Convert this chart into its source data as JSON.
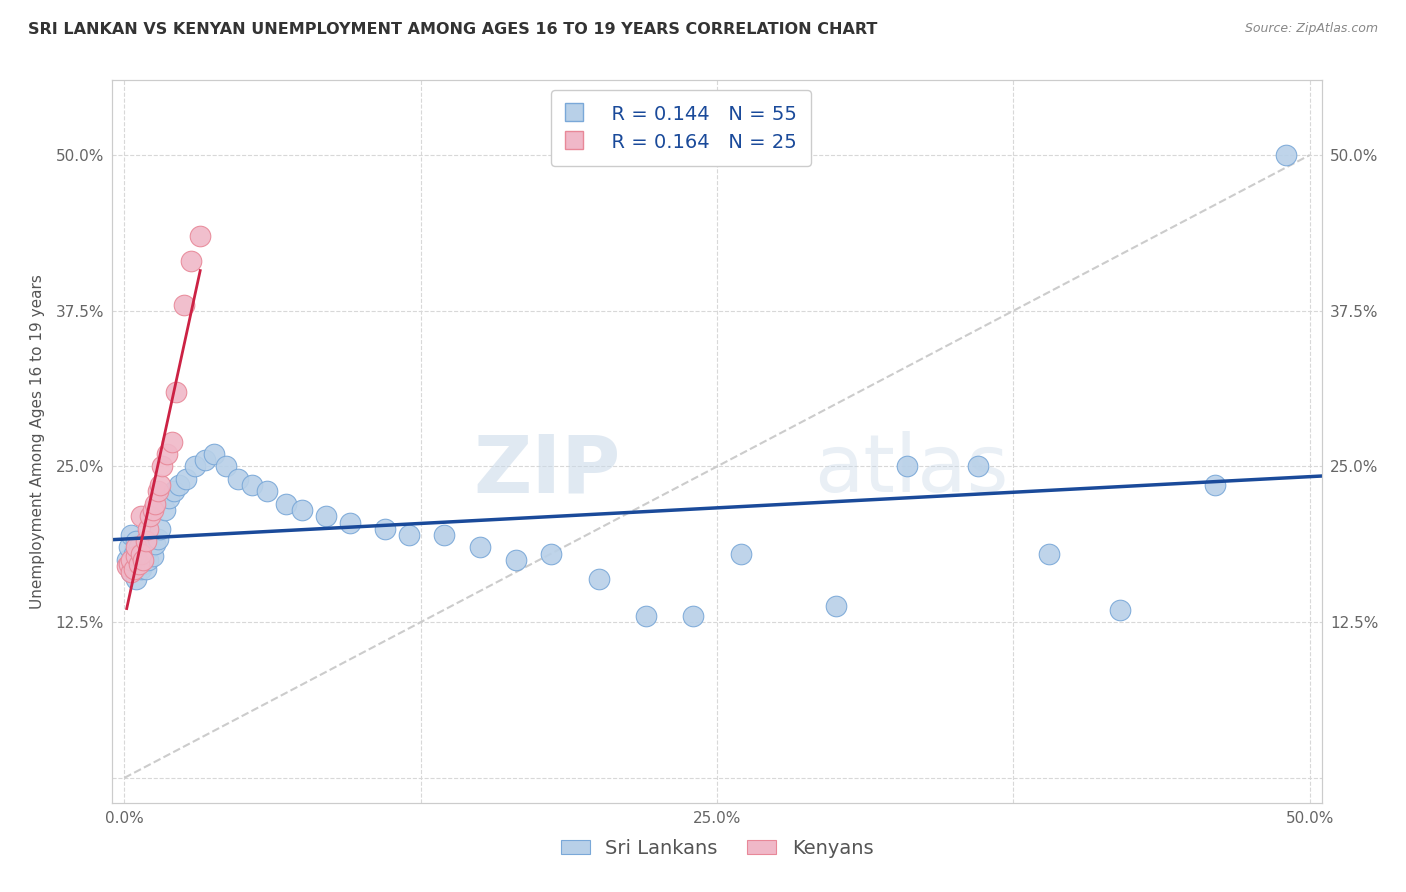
{
  "title": "SRI LANKAN VS KENYAN UNEMPLOYMENT AMONG AGES 16 TO 19 YEARS CORRELATION CHART",
  "source": "Source: ZipAtlas.com",
  "ylabel": "Unemployment Among Ages 16 to 19 years",
  "xlim": [
    -0.005,
    0.505
  ],
  "ylim": [
    -0.02,
    0.56
  ],
  "xticks": [
    0.0,
    0.125,
    0.25,
    0.375,
    0.5
  ],
  "xticklabels": [
    "0.0%",
    "",
    "25.0%",
    "",
    "50.0%"
  ],
  "yticks": [
    0.0,
    0.125,
    0.25,
    0.375,
    0.5
  ],
  "yticklabels": [
    "",
    "12.5%",
    "25.0%",
    "37.5%",
    "50.0%"
  ],
  "sri_lankan_x": [
    0.001,
    0.002,
    0.003,
    0.003,
    0.004,
    0.004,
    0.005,
    0.005,
    0.006,
    0.006,
    0.007,
    0.007,
    0.008,
    0.008,
    0.009,
    0.01,
    0.01,
    0.011,
    0.012,
    0.013,
    0.014,
    0.015,
    0.017,
    0.019,
    0.021,
    0.023,
    0.026,
    0.03,
    0.034,
    0.038,
    0.043,
    0.048,
    0.054,
    0.06,
    0.068,
    0.075,
    0.085,
    0.095,
    0.11,
    0.12,
    0.135,
    0.15,
    0.165,
    0.18,
    0.2,
    0.22,
    0.24,
    0.26,
    0.3,
    0.33,
    0.36,
    0.39,
    0.42,
    0.46,
    0.49
  ],
  "sri_lankan_y": [
    0.175,
    0.185,
    0.165,
    0.195,
    0.17,
    0.18,
    0.16,
    0.19,
    0.175,
    0.185,
    0.168,
    0.178,
    0.172,
    0.182,
    0.168,
    0.175,
    0.19,
    0.185,
    0.178,
    0.188,
    0.192,
    0.2,
    0.215,
    0.225,
    0.23,
    0.235,
    0.24,
    0.25,
    0.255,
    0.26,
    0.25,
    0.24,
    0.235,
    0.23,
    0.22,
    0.215,
    0.21,
    0.205,
    0.2,
    0.195,
    0.195,
    0.185,
    0.175,
    0.18,
    0.16,
    0.13,
    0.13,
    0.18,
    0.138,
    0.25,
    0.25,
    0.18,
    0.135,
    0.235,
    0.5
  ],
  "kenyan_x": [
    0.001,
    0.002,
    0.003,
    0.003,
    0.004,
    0.005,
    0.005,
    0.006,
    0.007,
    0.007,
    0.008,
    0.009,
    0.01,
    0.011,
    0.012,
    0.013,
    0.014,
    0.015,
    0.016,
    0.018,
    0.02,
    0.022,
    0.025,
    0.028,
    0.032
  ],
  "kenyan_y": [
    0.17,
    0.172,
    0.165,
    0.175,
    0.168,
    0.178,
    0.185,
    0.172,
    0.18,
    0.21,
    0.175,
    0.19,
    0.2,
    0.21,
    0.215,
    0.22,
    0.23,
    0.235,
    0.25,
    0.26,
    0.27,
    0.31,
    0.38,
    0.415,
    0.435
  ],
  "sri_lankan_color": "#b8d0e8",
  "kenyan_color": "#f0b8c8",
  "sri_lankan_edge": "#7aa8d8",
  "kenyan_edge": "#e88898",
  "trend_sri_color": "#1a4a9a",
  "trend_ken_color": "#cc2244",
  "diag_color": "#cccccc",
  "legend_r_sri": "R = 0.144",
  "legend_n_sri": "N = 55",
  "legend_r_ken": "R = 0.164",
  "legend_n_ken": "N = 25",
  "legend_label_sri": "Sri Lankans",
  "legend_label_ken": "Kenyans",
  "watermark_zip": "ZIP",
  "watermark_atlas": "atlas",
  "background_color": "#ffffff",
  "title_fontsize": 11.5,
  "label_fontsize": 11,
  "tick_fontsize": 11,
  "legend_fontsize": 14
}
